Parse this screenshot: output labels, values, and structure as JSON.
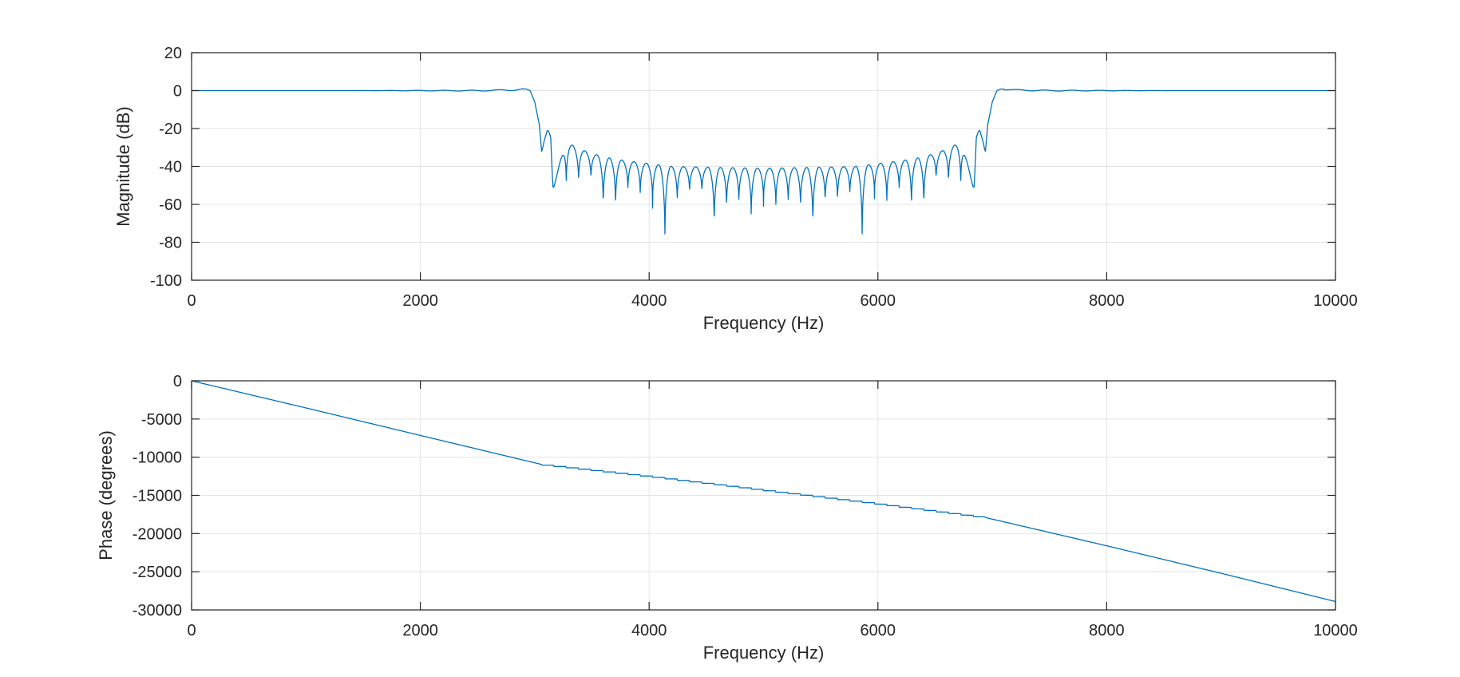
{
  "colors": {
    "series": "#0072BD",
    "axis": "#262626",
    "grid": "#e4e4e4"
  },
  "chart_data": [
    {
      "type": "line",
      "xlabel": "Frequency (Hz)",
      "ylabel": "Magnitude (dB)",
      "xlim": [
        0,
        10000
      ],
      "ylim": [
        -100,
        20
      ],
      "xticks": [
        0,
        2000,
        4000,
        6000,
        8000,
        10000
      ],
      "yticks": [
        20,
        0,
        -20,
        -40,
        -60,
        -80,
        -100
      ],
      "grid": true,
      "stopband_nulls_db": [
        -32,
        -51,
        -53,
        -51,
        -49,
        -65,
        -65,
        -55,
        -57,
        -62,
        -83,
        -61,
        -56,
        -56,
        -76,
        -65,
        -62,
        -70,
        -61,
        -64,
        -62,
        -65,
        -76,
        -62,
        -61,
        -57,
        -83,
        -57,
        -62,
        -55,
        -65,
        -65,
        -49,
        -51,
        -53,
        -51,
        -32
      ],
      "series": [
        {
          "x": [
            0,
            500,
            1000,
            1500,
            2000,
            2500,
            2800,
            2920,
            2960,
            3000,
            3040,
            3060,
            3080,
            3110,
            3140,
            3160,
            3270,
            3400,
            3600,
            3800,
            4000,
            4200,
            4600,
            5000,
            5400,
            5800,
            6000,
            6200,
            6400,
            6600,
            6730,
            6840,
            6860,
            6890,
            6920,
            6940,
            6960,
            7000,
            7040,
            7080,
            7200,
            7500,
            8000,
            8500,
            9000,
            9500,
            10000
          ],
          "values": [
            0,
            0,
            0,
            0,
            0,
            0,
            0.3,
            0.9,
            0,
            -6,
            -18,
            -32,
            -26,
            -21,
            -22,
            -51,
            -27,
            -31,
            -35,
            -37,
            -38.5,
            -40,
            -40.5,
            -41,
            -40.5,
            -40,
            -38.5,
            -37,
            -35,
            -31,
            -27,
            -51,
            -22,
            -21,
            -26,
            -32,
            -18,
            -6,
            0,
            0.9,
            0.3,
            0,
            0,
            0,
            0,
            0,
            0
          ]
        }
      ]
    },
    {
      "type": "line",
      "xlabel": "Frequency (Hz)",
      "ylabel": "Phase (degrees)",
      "xlim": [
        0,
        10000
      ],
      "ylim": [
        -30000,
        0
      ],
      "xticks": [
        0,
        2000,
        4000,
        6000,
        8000,
        10000
      ],
      "yticks": [
        0,
        -5000,
        -10000,
        -15000,
        -20000,
        -25000,
        -30000
      ],
      "grid": true,
      "series": [
        {
          "x": [
            0,
            1000,
            2000,
            3060,
            4000,
            5000,
            6000,
            6940,
            8000,
            9000,
            10000
          ],
          "values": [
            0,
            -3550,
            -7150,
            -10950,
            -12500,
            -14300,
            -16100,
            -17900,
            -21600,
            -25200,
            -28900
          ]
        }
      ]
    }
  ]
}
